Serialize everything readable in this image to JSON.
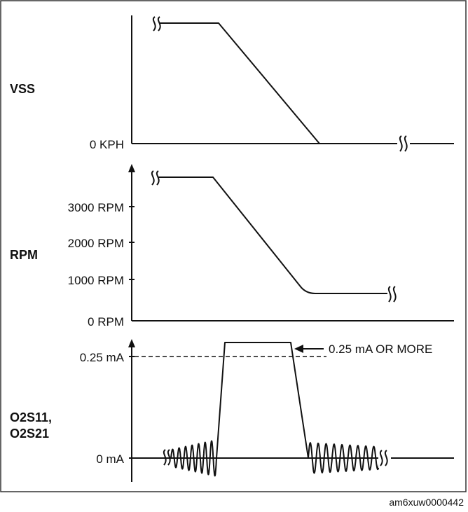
{
  "panels": {
    "vss": {
      "title": "VSS",
      "zero_label": "0 KPH"
    },
    "rpm": {
      "title": "RPM",
      "ticks": [
        "3000 RPM",
        "2000 RPM",
        "1000 RPM",
        "0 RPM"
      ]
    },
    "o2s": {
      "title_line1": "O2S11,",
      "title_line2": "O2S21",
      "tick_high": "0.25 mA",
      "tick_zero": "0 mA",
      "threshold_note": "0.25 mA OR MORE"
    }
  },
  "figure_id": "am6xuw0000442",
  "colors": {
    "line": "#111111",
    "border": "#333333",
    "background": "#ffffff"
  }
}
